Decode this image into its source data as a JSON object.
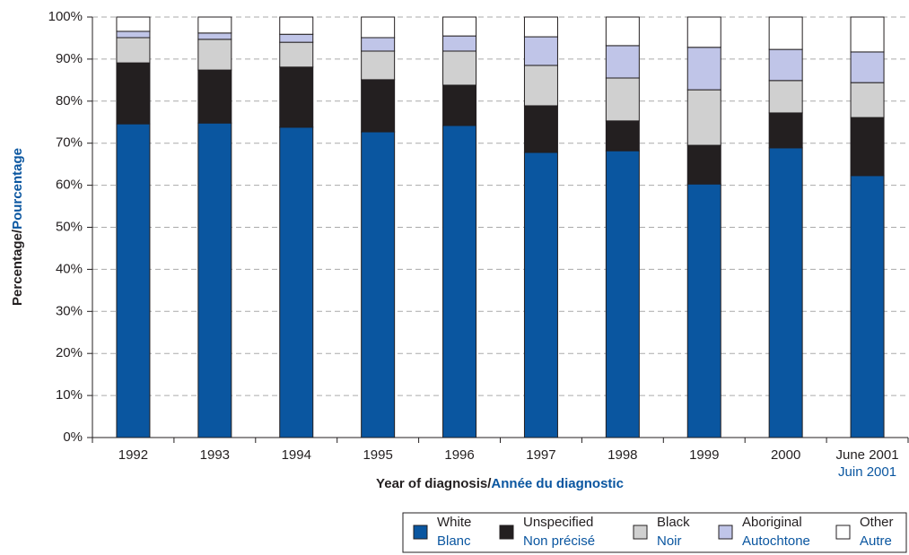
{
  "chart_data": {
    "type": "stacked-bar",
    "ylabel": [
      "Percentage/",
      "Pourcentage"
    ],
    "xlabel": [
      "Year of diagnosis/",
      "Année du diagnostic"
    ],
    "categories": [
      "1992",
      "1993",
      "1994",
      "1995",
      "1996",
      "1997",
      "1998",
      "1999",
      "2000",
      "June 2001"
    ],
    "x_sublabels": [
      null,
      null,
      null,
      null,
      null,
      null,
      null,
      null,
      null,
      "Juin 2001"
    ],
    "series": [
      {
        "name": "White",
        "name_fr": "Blanc",
        "color": "#0a56a0",
        "values": [
          74.6,
          74.8,
          73.8,
          72.7,
          74.2,
          67.8,
          68.2,
          60.3,
          68.9,
          62.3
        ]
      },
      {
        "name": "Unspecified",
        "name_fr": "Non précisé",
        "color": "#231f20",
        "values": [
          14.5,
          12.6,
          14.3,
          12.4,
          9.6,
          11.1,
          7.1,
          9.2,
          8.3,
          13.8
        ]
      },
      {
        "name": "Black",
        "name_fr": "Noir",
        "color": "#d0d0d0",
        "values": [
          6.0,
          7.3,
          5.9,
          6.8,
          8.1,
          9.6,
          10.2,
          13.2,
          7.7,
          8.3
        ]
      },
      {
        "name": "Aboriginal",
        "name_fr": "Autochtone",
        "color": "#c0c5e8",
        "values": [
          1.5,
          1.5,
          1.9,
          3.2,
          3.6,
          6.8,
          7.7,
          10.1,
          7.4,
          7.3
        ]
      },
      {
        "name": "Other",
        "name_fr": "Autre",
        "color": "#ffffff",
        "values": [
          3.4,
          3.8,
          4.1,
          4.9,
          4.5,
          4.7,
          6.8,
          7.2,
          7.7,
          8.3
        ]
      }
    ],
    "ylim": [
      0,
      100
    ],
    "yticks": [
      {
        "value": 0,
        "label": "0%"
      },
      {
        "value": 10,
        "label": "10%"
      },
      {
        "value": 20,
        "label": "20%"
      },
      {
        "value": 30,
        "label": "30%"
      },
      {
        "value": 40,
        "label": "40%"
      },
      {
        "value": 50,
        "label": "50%"
      },
      {
        "value": 60,
        "label": "60%"
      },
      {
        "value": 70,
        "label": "70%"
      },
      {
        "value": 80,
        "label": "80%"
      },
      {
        "value": 90,
        "label": "90%"
      },
      {
        "value": 100,
        "label": "100%"
      }
    ],
    "grid": true
  }
}
